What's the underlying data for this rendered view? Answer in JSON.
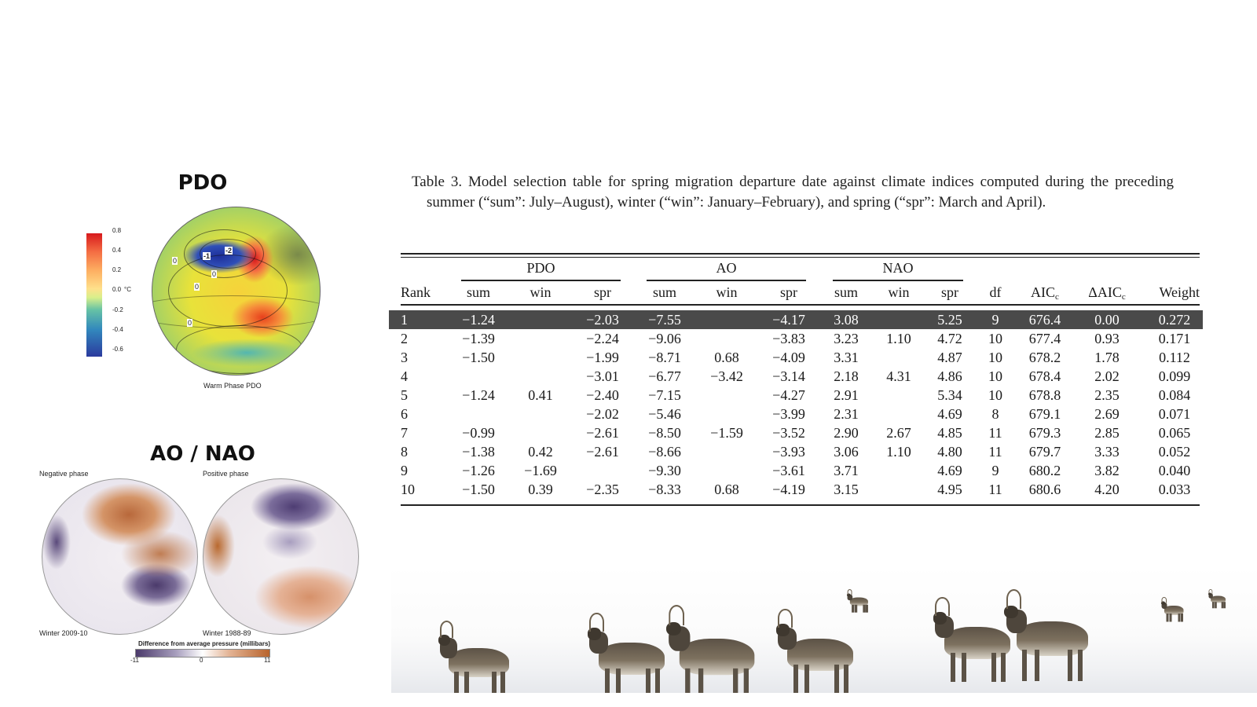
{
  "left_panel": {
    "pdo": {
      "title": "PDO",
      "colorbar_ticks": [
        "0.8",
        "0.4",
        "0.2",
        "0.0",
        "-0.2",
        "-0.4",
        "-0.6"
      ],
      "unit": "°C",
      "caption": "Warm Phase PDO",
      "contour_labels": [
        "-2",
        "-1",
        "0",
        "0",
        "0",
        "0"
      ]
    },
    "ao_nao": {
      "title": "AO / NAO",
      "negative_label": "Negative phase",
      "positive_label": "Positive phase",
      "negative_winter": "Winter 2009-10",
      "positive_winter": "Winter 1988-89",
      "scale_title": "Difference from average pressure (millibars)",
      "scale_ticks": [
        "-11",
        "0",
        "11"
      ]
    }
  },
  "table": {
    "caption": "Table 3. Model selection table for spring migration departure date against climate indices computed during the preceding summer (“sum”: July–August), winter (“win”: January–February), and spring (“spr”: March and April).",
    "groups": [
      "PDO",
      "AO",
      "NAO"
    ],
    "headers": [
      "Rank",
      "sum",
      "win",
      "spr",
      "sum",
      "win",
      "spr",
      "sum",
      "win",
      "spr",
      "df",
      "AIC",
      "ΔAIC",
      "Weight"
    ],
    "aic_subscript": "c",
    "rows": [
      [
        "1",
        "−1.24",
        "",
        "−2.03",
        "−7.55",
        "",
        "−4.17",
        "3.08",
        "",
        "5.25",
        "9",
        "676.4",
        "0.00",
        "0.272"
      ],
      [
        "2",
        "−1.39",
        "",
        "−2.24",
        "−9.06",
        "",
        "−3.83",
        "3.23",
        "1.10",
        "4.72",
        "10",
        "677.4",
        "0.93",
        "0.171"
      ],
      [
        "3",
        "−1.50",
        "",
        "−1.99",
        "−8.71",
        "0.68",
        "−4.09",
        "3.31",
        "",
        "4.87",
        "10",
        "678.2",
        "1.78",
        "0.112"
      ],
      [
        "4",
        "",
        "",
        "−3.01",
        "−6.77",
        "−3.42",
        "−3.14",
        "2.18",
        "4.31",
        "4.86",
        "10",
        "678.4",
        "2.02",
        "0.099"
      ],
      [
        "5",
        "−1.24",
        "0.41",
        "−2.40",
        "−7.15",
        "",
        "−4.27",
        "2.91",
        "",
        "5.34",
        "10",
        "678.8",
        "2.35",
        "0.084"
      ],
      [
        "6",
        "",
        "",
        "−2.02",
        "−5.46",
        "",
        "−3.99",
        "2.31",
        "",
        "4.69",
        "8",
        "679.1",
        "2.69",
        "0.071"
      ],
      [
        "7",
        "−0.99",
        "",
        "−2.61",
        "−8.50",
        "−1.59",
        "−3.52",
        "2.90",
        "2.67",
        "4.85",
        "11",
        "679.3",
        "2.85",
        "0.065"
      ],
      [
        "8",
        "−1.38",
        "0.42",
        "−2.61",
        "−8.66",
        "",
        "−3.93",
        "3.06",
        "1.10",
        "4.80",
        "11",
        "679.7",
        "3.33",
        "0.052"
      ],
      [
        "9",
        "−1.26",
        "−1.69",
        "",
        "−9.30",
        "",
        "−3.61",
        "3.71",
        "",
        "4.69",
        "9",
        "680.2",
        "3.82",
        "0.040"
      ],
      [
        "10",
        "−1.50",
        "0.39",
        "−2.35",
        "−8.33",
        "0.68",
        "−4.19",
        "3.15",
        "",
        "4.95",
        "11",
        "680.6",
        "4.20",
        "0.033"
      ]
    ],
    "highlight_row": 0
  },
  "colors": {
    "highlight_row": "#4a4a4a",
    "highlight_text": "#ffffff",
    "rule": "#222222"
  }
}
